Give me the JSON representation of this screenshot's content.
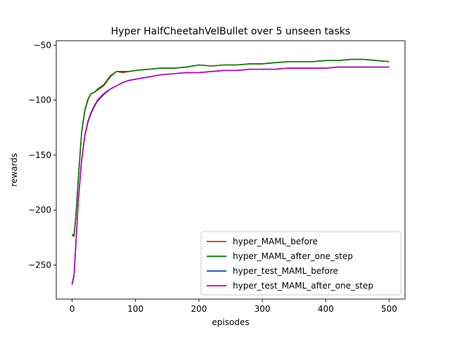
{
  "chart_data": {
    "type": "line",
    "title": "Hyper HalfCheetahVelBullet over 5 unseen tasks",
    "xlabel": "episodes",
    "ylabel": "rewards",
    "xlim": [
      -25,
      525
    ],
    "ylim": [
      -281,
      -46
    ],
    "xticks": [
      0,
      100,
      200,
      300,
      400,
      500
    ],
    "yticks": [
      -250,
      -200,
      -150,
      -100,
      -50
    ],
    "grid": false,
    "legend_position": "lower-right",
    "series": [
      {
        "name": "hyper_MAML_before",
        "color": "#d62728",
        "x": [
          0,
          3,
          6,
          10,
          15,
          20,
          25,
          30,
          35,
          40,
          50,
          60,
          70,
          80,
          90,
          100,
          120,
          140,
          160,
          180,
          200,
          220,
          240,
          260,
          280,
          300,
          320,
          340,
          360,
          380,
          400,
          420,
          440,
          460,
          480,
          500
        ],
        "y": [
          -223,
          -224,
          -205,
          -170,
          -130,
          -110,
          -100,
          -94,
          -93,
          -91,
          -87,
          -79,
          -74,
          -75,
          -74,
          -73,
          -72,
          -71,
          -71,
          -70,
          -68,
          -69,
          -68,
          -68,
          -67,
          -67,
          -66,
          -65,
          -65,
          -65,
          -64,
          -64,
          -63,
          -63,
          -64,
          -65
        ]
      },
      {
        "name": "hyper_MAML_after_one_step",
        "color": "#008000",
        "x": [
          0,
          3,
          6,
          10,
          15,
          20,
          25,
          30,
          35,
          40,
          50,
          60,
          70,
          80,
          90,
          100,
          120,
          140,
          160,
          180,
          200,
          220,
          240,
          260,
          280,
          300,
          320,
          340,
          360,
          380,
          400,
          420,
          440,
          460,
          480,
          500
        ],
        "y": [
          -222,
          -223,
          -204,
          -169,
          -129,
          -109,
          -99,
          -94,
          -93,
          -90,
          -86,
          -78,
          -74,
          -74,
          -74,
          -73,
          -72,
          -71,
          -71,
          -70,
          -68,
          -69,
          -68,
          -68,
          -67,
          -67,
          -66,
          -65,
          -65,
          -65,
          -64,
          -64,
          -63,
          -63,
          -64,
          -65
        ]
      },
      {
        "name": "hyper_test_MAML_before",
        "color": "#1f3fbf",
        "x": [
          0,
          3,
          6,
          10,
          15,
          20,
          25,
          30,
          35,
          40,
          50,
          60,
          70,
          80,
          90,
          100,
          120,
          140,
          160,
          180,
          200,
          220,
          240,
          260,
          280,
          300,
          320,
          340,
          360,
          380,
          400,
          420,
          440,
          460,
          480,
          500
        ],
        "y": [
          -268,
          -260,
          -230,
          -190,
          -155,
          -133,
          -120,
          -112,
          -106,
          -101,
          -95,
          -90,
          -87,
          -84,
          -82,
          -81,
          -79,
          -77,
          -76,
          -75,
          -75,
          -74,
          -73,
          -73,
          -72,
          -72,
          -72,
          -71,
          -71,
          -71,
          -71,
          -70,
          -70,
          -70,
          -70,
          -70
        ]
      },
      {
        "name": "hyper_test_MAML_after_one_step",
        "color": "#bf00bf",
        "x": [
          0,
          3,
          6,
          10,
          15,
          20,
          25,
          30,
          35,
          40,
          50,
          60,
          70,
          80,
          90,
          100,
          120,
          140,
          160,
          180,
          200,
          220,
          240,
          260,
          280,
          300,
          320,
          340,
          360,
          380,
          400,
          420,
          440,
          460,
          480,
          500
        ],
        "y": [
          -267,
          -259,
          -229,
          -189,
          -154,
          -132,
          -119,
          -111,
          -105,
          -100,
          -94,
          -90,
          -87,
          -84,
          -82,
          -81,
          -79,
          -77,
          -76,
          -75,
          -75,
          -74,
          -73,
          -73,
          -72,
          -72,
          -72,
          -71,
          -71,
          -71,
          -71,
          -70,
          -70,
          -70,
          -70,
          -70
        ]
      }
    ]
  }
}
